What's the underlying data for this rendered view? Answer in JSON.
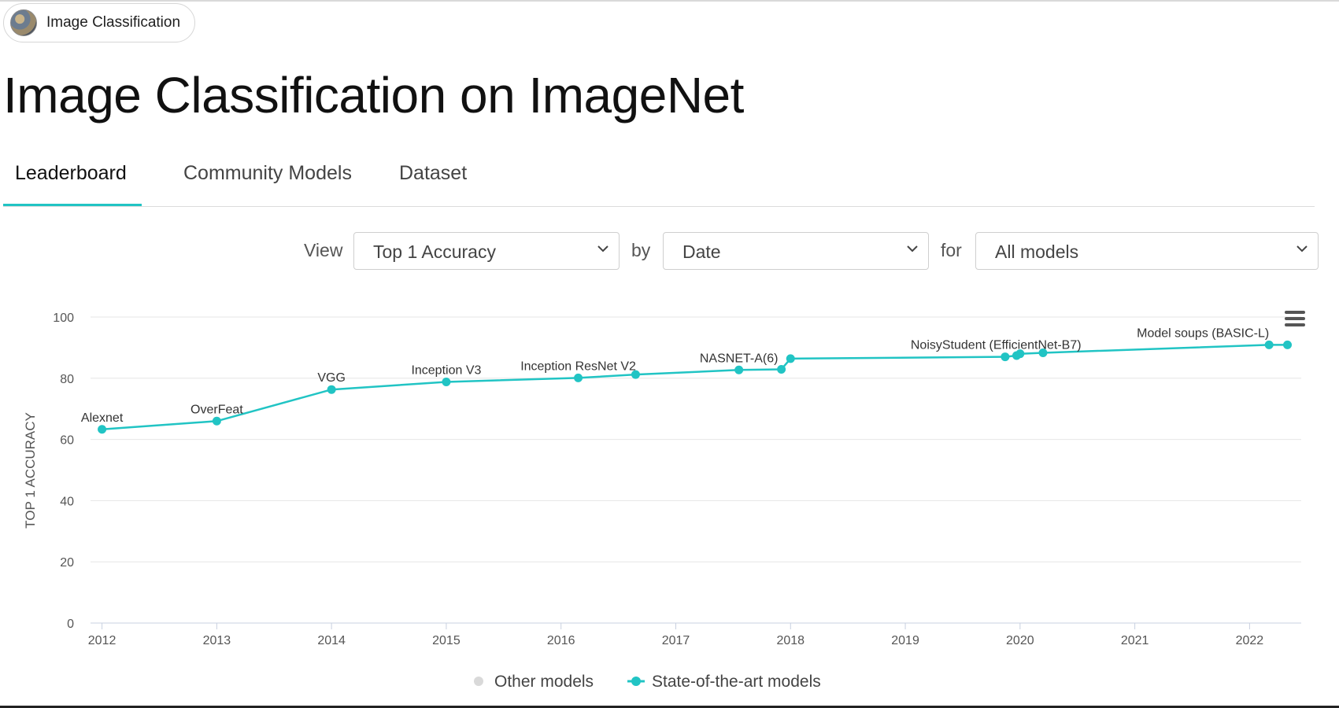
{
  "breadcrumb": {
    "label": "Image Classification"
  },
  "page": {
    "title": "Image Classification on ImageNet"
  },
  "tabs": [
    {
      "label": "Leaderboard",
      "active": true
    },
    {
      "label": "Community Models",
      "active": false
    },
    {
      "label": "Dataset",
      "active": false
    }
  ],
  "controls": {
    "view_label": "View",
    "view_value": "Top 1 Accuracy",
    "by_label": "by",
    "by_value": "Date",
    "for_label": "for",
    "for_value": "All models"
  },
  "colors": {
    "accent": "#21c4c4",
    "other_models": "#d9d9d9",
    "grid": "#e6e6e6"
  },
  "chart_data": {
    "type": "line",
    "ylabel": "TOP 1 ACCURACY",
    "xlabel": "",
    "ylim": [
      0,
      100
    ],
    "yticks": [
      0,
      20,
      40,
      60,
      80,
      100
    ],
    "xlim": [
      2011.9,
      2022.45
    ],
    "xticks": [
      2012,
      2013,
      2014,
      2015,
      2016,
      2017,
      2018,
      2019,
      2020,
      2021,
      2022
    ],
    "grid": true,
    "legend_position": "bottom",
    "legend": [
      "Other models",
      "State-of-the-art models"
    ],
    "series": [
      {
        "name": "State-of-the-art models",
        "points": [
          {
            "x": 2012.0,
            "y": 63.3
          },
          {
            "x": 2013.0,
            "y": 66.0
          },
          {
            "x": 2014.0,
            "y": 76.3
          },
          {
            "x": 2015.0,
            "y": 78.8
          },
          {
            "x": 2016.15,
            "y": 80.1
          },
          {
            "x": 2016.65,
            "y": 81.2
          },
          {
            "x": 2017.55,
            "y": 82.7
          },
          {
            "x": 2017.92,
            "y": 82.9
          },
          {
            "x": 2018.0,
            "y": 86.4
          },
          {
            "x": 2019.87,
            "y": 87.0
          },
          {
            "x": 2019.97,
            "y": 87.4
          },
          {
            "x": 2020.0,
            "y": 88.0
          },
          {
            "x": 2020.2,
            "y": 88.3
          },
          {
            "x": 2022.17,
            "y": 90.9
          },
          {
            "x": 2022.33,
            "y": 90.9
          }
        ]
      }
    ],
    "annotations": [
      {
        "label": "Alexnet",
        "x": 2012.0,
        "y": 63.3
      },
      {
        "label": "OverFeat",
        "x": 2013.0,
        "y": 66.0
      },
      {
        "label": "VGG",
        "x": 2014.0,
        "y": 76.3
      },
      {
        "label": "Inception V3",
        "x": 2015.0,
        "y": 78.8
      },
      {
        "label": "Inception ResNet V2",
        "x": 2016.15,
        "y": 80.1
      },
      {
        "label": "NASNET-A(6)",
        "x": 2017.55,
        "y": 82.7
      },
      {
        "label": "NoisyStudent (EfficientNet-B7)",
        "x": 2019.87,
        "y": 87.0
      },
      {
        "label": "Model soups (BASIC-L)",
        "x": 2022.17,
        "y": 90.9
      }
    ]
  }
}
